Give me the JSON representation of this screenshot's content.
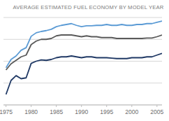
{
  "chart_data": {
    "type": "line",
    "title": "AVERAGE ESTIMATED FUEL ECONOMY BY MODEL YEAR",
    "x": [
      1975,
      1976,
      1977,
      1978,
      1979,
      1980,
      1981,
      1982,
      1983,
      1984,
      1985,
      1986,
      1987,
      1988,
      1989,
      1990,
      1991,
      1992,
      1993,
      1994,
      1995,
      1996,
      1997,
      1998,
      1999,
      2000,
      2001,
      2002,
      2003,
      2004,
      2005,
      2006
    ],
    "series": [
      {
        "color": "#5b9bd5",
        "values": [
          18.5,
          20.4,
          21.2,
          22.5,
          23.1,
          25.7,
          26.5,
          26.8,
          27.0,
          27.3,
          27.9,
          28.2,
          28.4,
          28.6,
          28.2,
          27.9,
          28.1,
          28.1,
          28.2,
          28.2,
          28.4,
          28.2,
          28.2,
          28.4,
          28.2,
          28.2,
          28.4,
          28.4,
          28.6,
          28.6,
          28.9,
          29.2
        ]
      },
      {
        "color": "#5a5a5a",
        "values": [
          18.0,
          19.4,
          20.2,
          21.0,
          21.4,
          23.8,
          24.6,
          25.0,
          25.0,
          25.2,
          25.8,
          26.0,
          26.0,
          26.0,
          25.8,
          25.6,
          25.8,
          25.6,
          25.6,
          25.4,
          25.4,
          25.4,
          25.2,
          25.2,
          25.2,
          25.2,
          25.2,
          25.2,
          25.3,
          25.3,
          25.6,
          26.0
        ]
      },
      {
        "color": "#1f3864",
        "values": [
          12.4,
          15.6,
          16.7,
          16.0,
          16.2,
          19.5,
          20.0,
          20.3,
          20.2,
          20.4,
          20.8,
          21.0,
          21.0,
          21.2,
          21.0,
          20.8,
          21.0,
          21.0,
          20.8,
          20.8,
          20.8,
          20.7,
          20.6,
          20.6,
          20.6,
          20.8,
          20.8,
          20.8,
          21.0,
          21.0,
          21.4,
          21.8
        ]
      }
    ],
    "xlim": [
      1974.5,
      2006
    ],
    "xticks": [
      1975,
      1980,
      1985,
      1990,
      1995,
      2000,
      2005
    ],
    "ylim": [
      10,
      30
    ],
    "yticks": [
      10,
      15,
      20,
      25,
      30
    ],
    "grid": true,
    "tick_labels": "x"
  }
}
